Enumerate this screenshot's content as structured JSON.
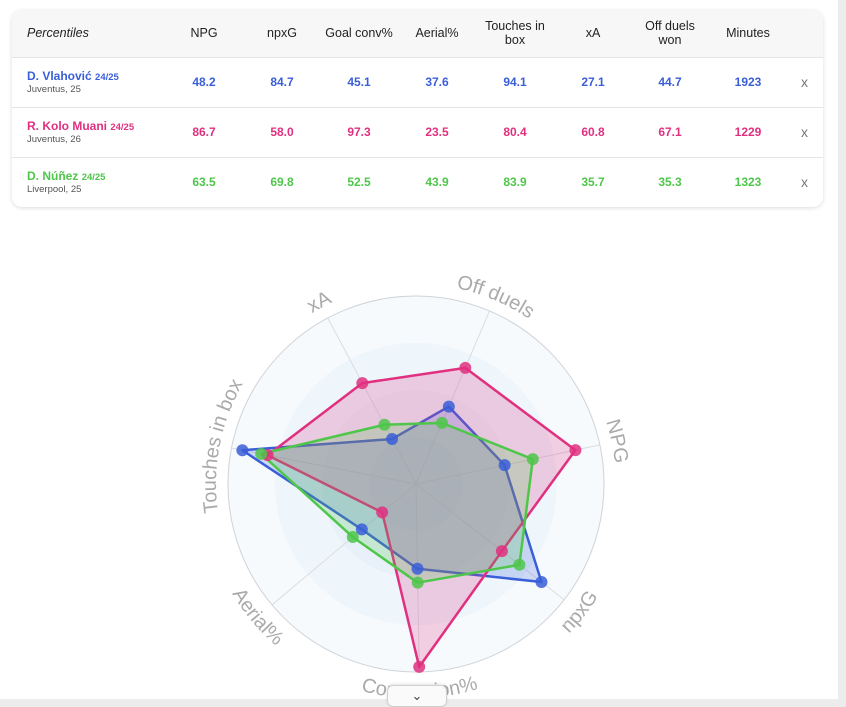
{
  "table": {
    "headers": [
      "Percentiles",
      "NPG",
      "npxG",
      "Goal conv%",
      "Aerial%",
      "Touches in box",
      "xA",
      "Off duels won",
      "Minutes"
    ],
    "rows": [
      {
        "name": "D. Vlahović",
        "season": "24/25",
        "club": "Juventus, 25",
        "color": "#3a5ed8",
        "values": [
          "48.2",
          "84.7",
          "45.1",
          "37.6",
          "94.1",
          "27.1",
          "44.7",
          "1923"
        ],
        "remove": "x"
      },
      {
        "name": "R. Kolo Muani",
        "season": "24/25",
        "club": "Juventus, 26",
        "color": "#e0307f",
        "values": [
          "86.7",
          "58.0",
          "97.3",
          "23.5",
          "80.4",
          "60.8",
          "67.1",
          "1229"
        ],
        "remove": "x"
      },
      {
        "name": "D. Núñez",
        "season": "24/25",
        "club": "Liverpool, 25",
        "color": "#4ec64a",
        "values": [
          "63.5",
          "69.8",
          "52.5",
          "43.9",
          "83.9",
          "35.7",
          "35.3",
          "1323"
        ],
        "remove": "x"
      }
    ]
  },
  "chart_data": {
    "type": "radar",
    "axes": [
      "NPG",
      "npxG",
      "Conversion%",
      "Aerial%",
      "Touches in box",
      "xA",
      "Off duels"
    ],
    "rmax": 100,
    "grid_bands": 4,
    "series": [
      {
        "name": "D. Vlahović",
        "color": "#3a5ed8",
        "values": [
          48.2,
          84.7,
          45.1,
          37.6,
          94.1,
          27.1,
          44.7
        ]
      },
      {
        "name": "R. Kolo Muani",
        "color": "#e0307f",
        "values": [
          86.7,
          58.0,
          97.3,
          23.5,
          80.4,
          60.8,
          67.1
        ]
      },
      {
        "name": "D. Núñez",
        "color": "#4ec64a",
        "values": [
          63.5,
          69.8,
          52.5,
          43.9,
          83.9,
          35.7,
          35.3
        ]
      }
    ]
  },
  "handle_icon": "chevron-down-icon",
  "handle_glyph": "⌄"
}
